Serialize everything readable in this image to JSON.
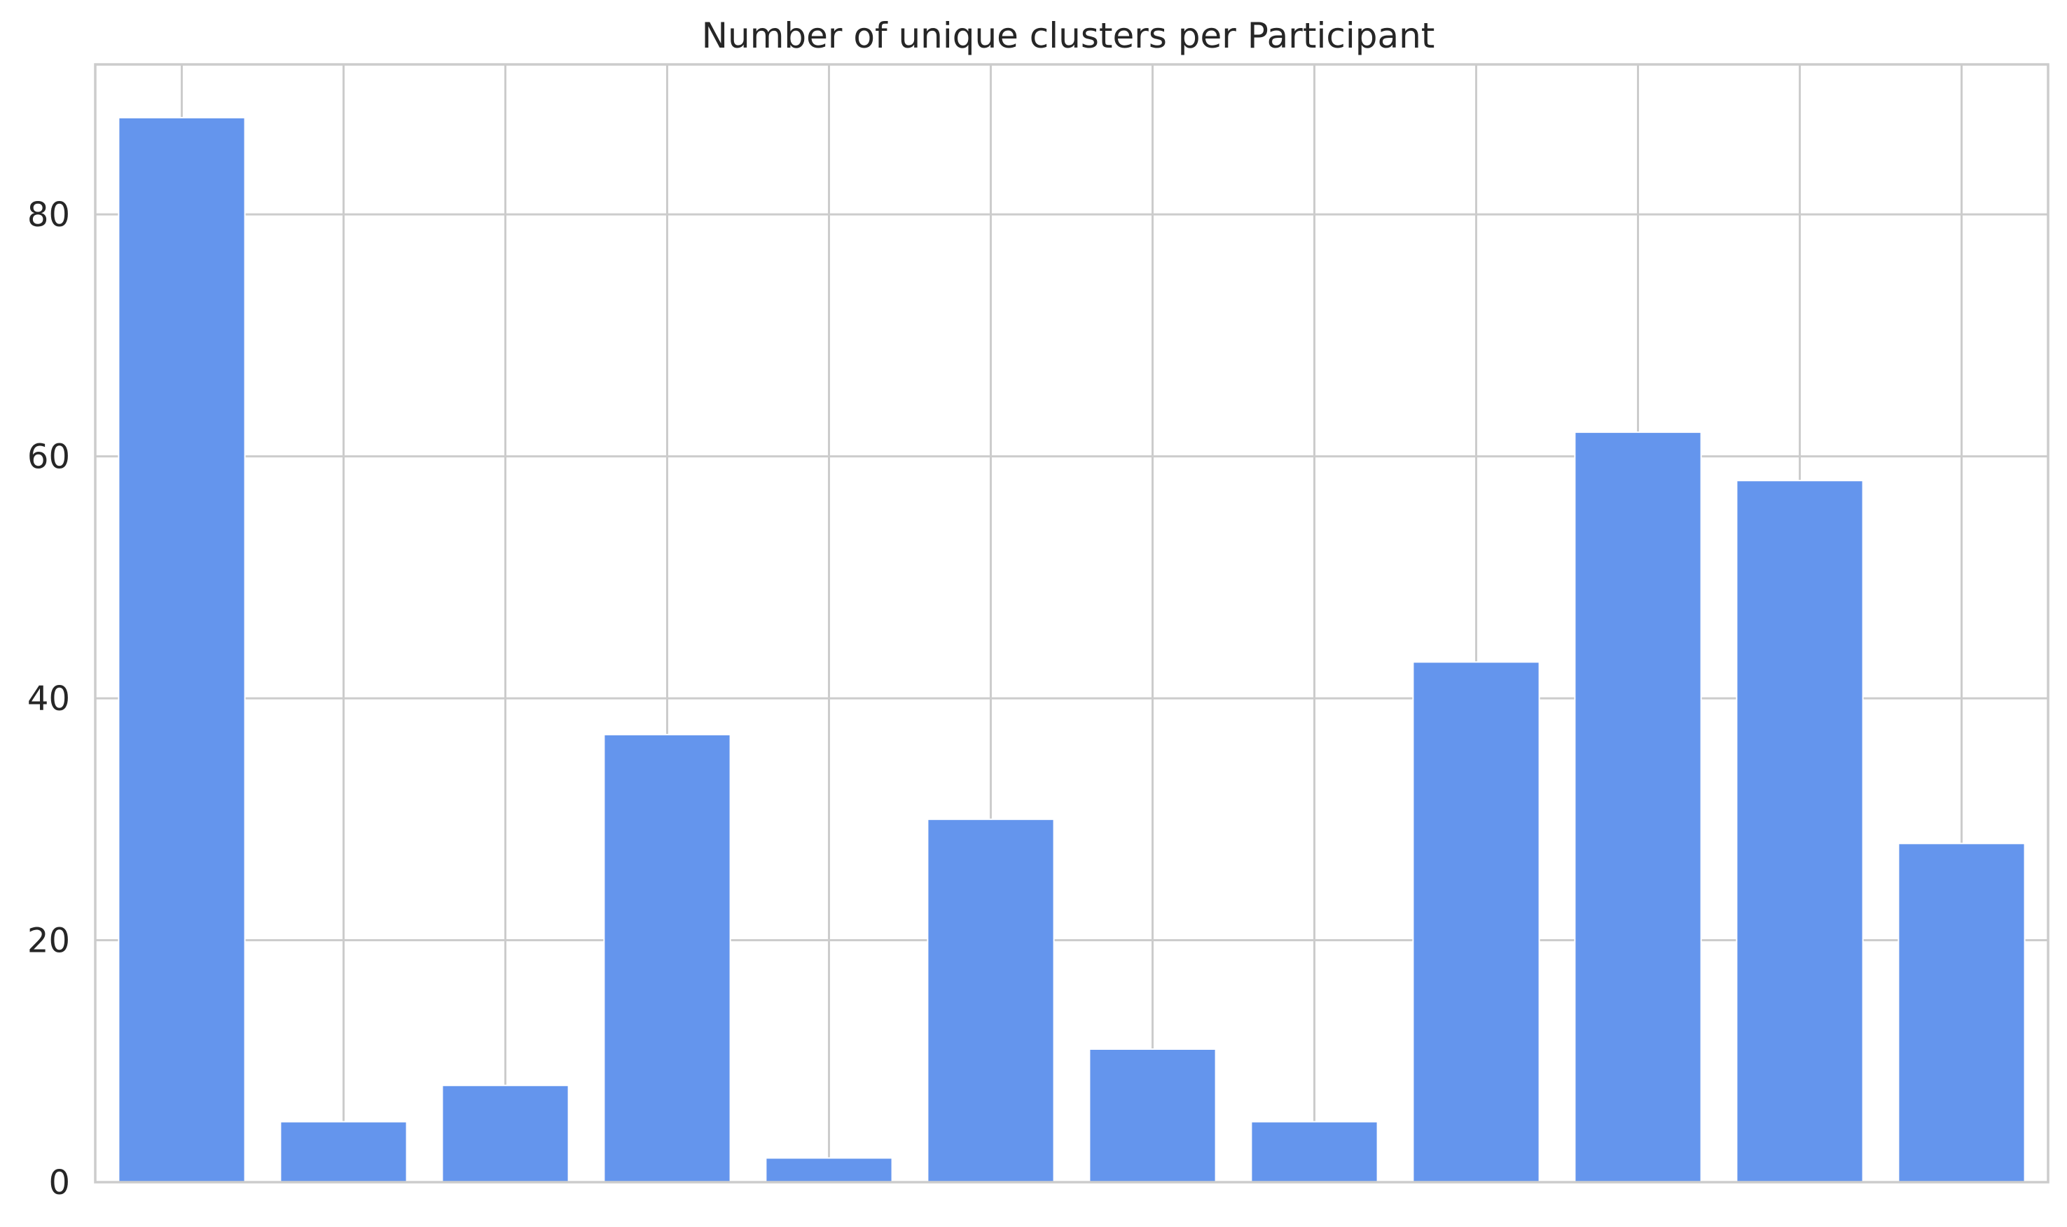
{
  "chart_data": {
    "type": "bar",
    "title": "Number of unique clusters per Participant",
    "xlabel": "",
    "ylabel": "",
    "categories": [
      "",
      "",
      "",
      "",
      "",
      "",
      "",
      "",
      "",
      "",
      "",
      ""
    ],
    "values": [
      88,
      5,
      8,
      37,
      2,
      30,
      11,
      5,
      43,
      62,
      58,
      28
    ],
    "ylim": [
      0,
      92.4
    ],
    "yticks": [
      0,
      20,
      40,
      60,
      80
    ],
    "ytick_labels": [
      "0",
      "20",
      "40",
      "60",
      "80"
    ],
    "grid": true,
    "legend": "none",
    "colors": {
      "bar": "#6495ED",
      "grid": "#cccccc",
      "spine": "#cccccc",
      "text": "#262626",
      "background": "#ffffff"
    }
  }
}
